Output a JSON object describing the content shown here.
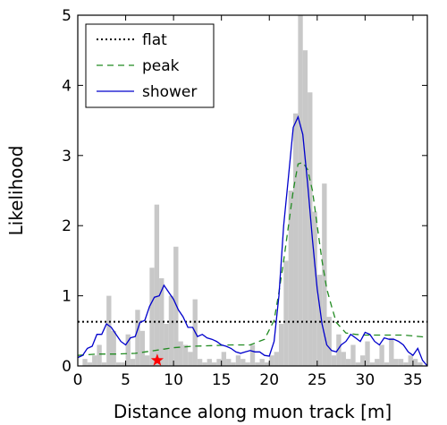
{
  "chart_data": {
    "type": "line",
    "xlabel": "Distance along muon track  [m]",
    "ylabel": "Likelihood",
    "xlim": [
      0,
      36.5
    ],
    "ylim": [
      0,
      5
    ],
    "xticks": [
      0,
      5,
      10,
      15,
      20,
      25,
      30,
      35
    ],
    "yticks": [
      0,
      1,
      2,
      3,
      4,
      5
    ],
    "grid": false,
    "legend_placement": "top-left",
    "colors": {
      "histogram": "#c8c8c8",
      "flat": "#000000",
      "peak": "#228b22",
      "shower": "#0000cc",
      "marker": "#ff0000"
    },
    "histogram": {
      "bin_width": 0.5,
      "bins": [
        [
          0.5,
          0.1
        ],
        [
          1.0,
          0.05
        ],
        [
          1.5,
          0.15
        ],
        [
          2.0,
          0.3
        ],
        [
          2.5,
          0.05
        ],
        [
          3.0,
          1.0
        ],
        [
          3.5,
          0.5
        ],
        [
          4.0,
          0.05
        ],
        [
          4.5,
          0.05
        ],
        [
          5.0,
          0.45
        ],
        [
          5.5,
          0.1
        ],
        [
          6.0,
          0.8
        ],
        [
          6.5,
          0.5
        ],
        [
          7.0,
          0.15
        ],
        [
          7.5,
          1.4
        ],
        [
          8.0,
          2.3
        ],
        [
          8.5,
          1.25
        ],
        [
          9.0,
          0.6
        ],
        [
          9.5,
          1.0
        ],
        [
          10.0,
          1.7
        ],
        [
          10.5,
          0.35
        ],
        [
          11.0,
          0.3
        ],
        [
          11.5,
          0.2
        ],
        [
          12.0,
          0.95
        ],
        [
          12.5,
          0.1
        ],
        [
          13.0,
          0.05
        ],
        [
          13.5,
          0.1
        ],
        [
          14.0,
          0.05
        ],
        [
          14.5,
          0.1
        ],
        [
          15.0,
          0.2
        ],
        [
          15.5,
          0.1
        ],
        [
          16.0,
          0.05
        ],
        [
          16.5,
          0.15
        ],
        [
          17.0,
          0.1
        ],
        [
          17.5,
          0.05
        ],
        [
          18.0,
          0.3
        ],
        [
          18.5,
          0.05
        ],
        [
          19.0,
          0.1
        ],
        [
          19.5,
          0.05
        ],
        [
          20.0,
          0.15
        ],
        [
          20.5,
          0.2
        ],
        [
          21.0,
          0.6
        ],
        [
          21.5,
          1.5
        ],
        [
          22.0,
          2.5
        ],
        [
          22.5,
          3.6
        ],
        [
          23.0,
          5.0
        ],
        [
          23.5,
          4.5
        ],
        [
          24.0,
          3.9
        ],
        [
          24.5,
          2.2
        ],
        [
          25.0,
          1.3
        ],
        [
          25.5,
          2.6
        ],
        [
          26.0,
          0.7
        ],
        [
          26.5,
          0.15
        ],
        [
          27.0,
          0.45
        ],
        [
          27.5,
          0.2
        ],
        [
          28.0,
          0.1
        ],
        [
          28.5,
          0.3
        ],
        [
          29.0,
          0.05
        ],
        [
          29.5,
          0.15
        ],
        [
          30.0,
          0.35
        ],
        [
          30.5,
          0.05
        ],
        [
          31.0,
          0.1
        ],
        [
          31.5,
          0.3
        ],
        [
          32.0,
          0.05
        ],
        [
          32.5,
          0.4
        ],
        [
          33.0,
          0.1
        ],
        [
          33.5,
          0.1
        ],
        [
          34.0,
          0.05
        ],
        [
          34.5,
          0.15
        ],
        [
          35.0,
          0.1
        ],
        [
          35.5,
          0.05
        ]
      ]
    },
    "series": [
      {
        "name": "flat",
        "style": "dotted",
        "x": [
          0,
          36.5
        ],
        "y": [
          0.63,
          0.63
        ]
      },
      {
        "name": "peak",
        "style": "dashed",
        "x": [
          0,
          2,
          4,
          6,
          8,
          10,
          12,
          14,
          16,
          18,
          19.5,
          20.5,
          21,
          21.5,
          22,
          22.5,
          23,
          23.5,
          24,
          24.5,
          25,
          25.5,
          26,
          26.5,
          27,
          28,
          29,
          30,
          32,
          34,
          36.5
        ],
        "y": [
          0.15,
          0.17,
          0.17,
          0.18,
          0.22,
          0.26,
          0.28,
          0.29,
          0.3,
          0.3,
          0.38,
          0.65,
          1.05,
          1.5,
          2.0,
          2.5,
          2.88,
          2.9,
          2.8,
          2.5,
          2.0,
          1.5,
          1.1,
          0.85,
          0.62,
          0.47,
          0.45,
          0.44,
          0.44,
          0.44,
          0.41
        ]
      },
      {
        "name": "shower",
        "style": "solid",
        "x": [
          0,
          0.5,
          1,
          1.5,
          2,
          2.5,
          3,
          3.5,
          4,
          4.5,
          5,
          5.5,
          6,
          6.5,
          7,
          7.5,
          8,
          8.5,
          9,
          9.5,
          10,
          10.5,
          11,
          11.5,
          12,
          12.5,
          13,
          13.5,
          14,
          14.5,
          15,
          15.5,
          16,
          16.5,
          17,
          17.5,
          18,
          18.5,
          19,
          19.5,
          20,
          20.5,
          21,
          21.5,
          22,
          22.5,
          23,
          23.5,
          24,
          24.5,
          25,
          25.5,
          26,
          26.5,
          27,
          27.5,
          28,
          28.5,
          29,
          29.5,
          30,
          30.5,
          31,
          31.5,
          32,
          32.5,
          33,
          33.5,
          34,
          34.5,
          35,
          35.5,
          36,
          36.5
        ],
        "y": [
          0.12,
          0.15,
          0.25,
          0.28,
          0.45,
          0.45,
          0.6,
          0.55,
          0.45,
          0.35,
          0.3,
          0.4,
          0.42,
          0.62,
          0.65,
          0.85,
          0.98,
          1.0,
          1.15,
          1.05,
          0.95,
          0.8,
          0.7,
          0.55,
          0.55,
          0.42,
          0.45,
          0.4,
          0.38,
          0.35,
          0.3,
          0.28,
          0.25,
          0.2,
          0.18,
          0.2,
          0.22,
          0.2,
          0.2,
          0.15,
          0.14,
          0.35,
          1.0,
          2.0,
          2.7,
          3.4,
          3.55,
          3.3,
          2.6,
          1.8,
          1.1,
          0.6,
          0.3,
          0.22,
          0.2,
          0.3,
          0.35,
          0.45,
          0.4,
          0.35,
          0.48,
          0.45,
          0.35,
          0.3,
          0.4,
          0.38,
          0.38,
          0.35,
          0.3,
          0.2,
          0.15,
          0.25,
          0.08,
          0.0
        ]
      }
    ],
    "marker": {
      "symbol": "star",
      "x": 8.3,
      "y": 0.08
    },
    "legend": [
      "flat",
      "peak",
      "shower"
    ]
  }
}
